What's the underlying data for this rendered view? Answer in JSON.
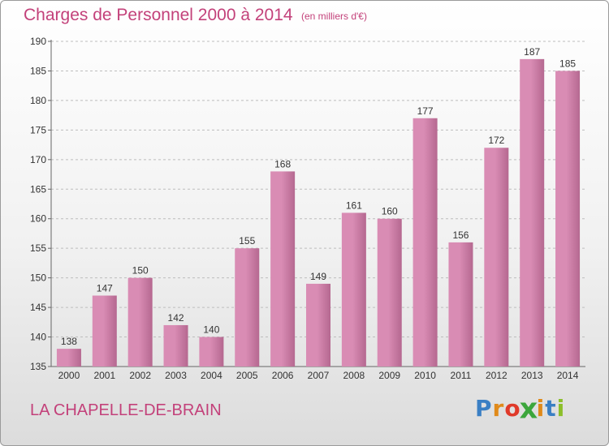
{
  "header": {
    "title": "Charges de Personnel 2000 à 2014",
    "unit_note": "(en milliers d'€)"
  },
  "footer": {
    "location": "LA CHAPELLE-DE-BRAIN",
    "logo": {
      "letters": [
        "P",
        "r",
        "o",
        "x",
        "i",
        "t",
        "i"
      ],
      "colors": [
        "#3a7fc4",
        "#e08a1a",
        "#e03a2a",
        "#3ca63c",
        "#e08a1a",
        "#3a7fc4",
        "#8cbf2a"
      ]
    }
  },
  "chart_data": {
    "type": "bar",
    "title": "Charges de Personnel 2000 à 2014",
    "subtitle": "(en milliers d'€)",
    "categories": [
      "2000",
      "2001",
      "2002",
      "2003",
      "2004",
      "2005",
      "2006",
      "2007",
      "2008",
      "2009",
      "2010",
      "2011",
      "2012",
      "2013",
      "2014"
    ],
    "values": [
      138,
      147,
      150,
      142,
      140,
      155,
      168,
      149,
      161,
      160,
      177,
      156,
      172,
      187,
      185
    ],
    "ylim": [
      135,
      190
    ],
    "yticks": [
      135,
      140,
      145,
      150,
      155,
      160,
      165,
      170,
      175,
      180,
      185,
      190
    ],
    "grid": true,
    "legend": "none",
    "bar_color": "#d98cb4",
    "bar_color_dark": "#b56890",
    "grid_color": "#bdbdbd",
    "label_color": "#333333"
  }
}
